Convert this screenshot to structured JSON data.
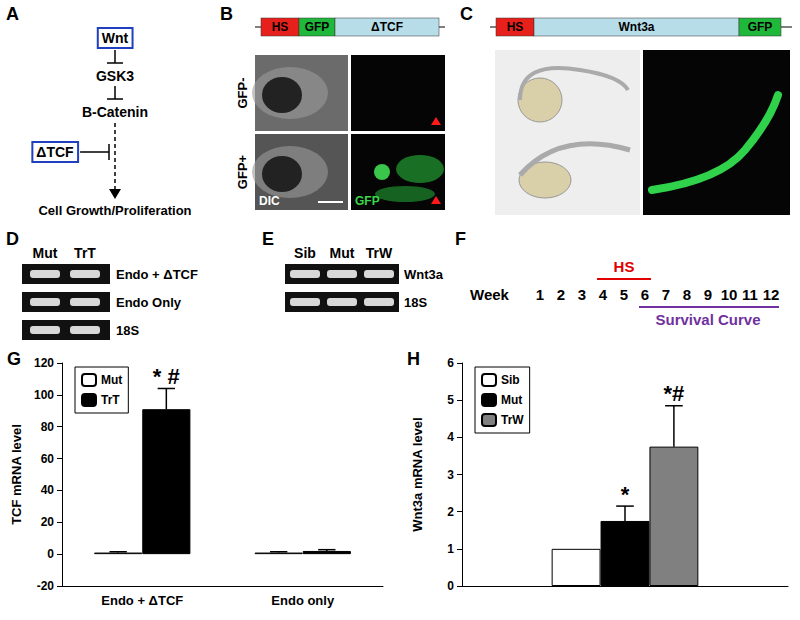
{
  "panels": {
    "A": {
      "label": "A",
      "nodes": [
        "Wnt",
        "GSK3",
        "B-Catenin",
        "ΔTCF",
        "Cell Growth/Proliferation"
      ]
    },
    "B": {
      "label": "B",
      "construct": [
        "HS",
        "GFP",
        "ΔTCF"
      ],
      "rows": [
        "GFP-",
        "GFP+"
      ],
      "columns": [
        "DIC",
        "GFP"
      ]
    },
    "C": {
      "label": "C",
      "construct": [
        "HS",
        "Wnt3a",
        "GFP"
      ]
    },
    "D": {
      "label": "D",
      "lanes": [
        "Mut",
        "TrT"
      ],
      "rows": [
        "Endo + ΔTCF",
        "Endo Only",
        "18S"
      ]
    },
    "E": {
      "label": "E",
      "lanes": [
        "Sib",
        "Mut",
        "TrW"
      ],
      "rows": [
        "Wnt3a",
        "18S"
      ]
    },
    "F": {
      "label": "F",
      "prefix": "Week",
      "weeks": [
        1,
        2,
        3,
        4,
        5,
        6,
        7,
        8,
        9,
        10,
        11,
        12
      ],
      "heat_shock": {
        "text": "HS",
        "from": 4,
        "to": 6
      },
      "survival": {
        "text": "Survival Curve",
        "from": 6,
        "to": 12
      }
    }
  },
  "chart_data": [
    {
      "type": "bar",
      "title": "G",
      "y_label": "TCF mRNA level",
      "categories": [
        "Endo + ΔTCF",
        "Endo only"
      ],
      "series": [
        {
          "name": "Mut",
          "color": "#ffffff",
          "values": [
            1,
            1
          ],
          "errors": [
            0.5,
            0.5
          ]
        },
        {
          "name": "TrT",
          "color": "#000000",
          "values": [
            91,
            2
          ],
          "errors": [
            13,
            0.8
          ]
        }
      ],
      "annotations": [
        {
          "series": "TrT",
          "index": 0,
          "text": "* #"
        }
      ],
      "ylim": [
        -20,
        120
      ],
      "yticks": [
        -20,
        0,
        20,
        40,
        60,
        80,
        100,
        120
      ],
      "grid": false,
      "legend": "top-left"
    },
    {
      "type": "bar",
      "title": "H",
      "y_label": "Wnt3a mRNA level",
      "categories": [
        null
      ],
      "series": [
        {
          "name": "Sib",
          "color": "#ffffff",
          "values": [
            1
          ],
          "errors": [
            null
          ]
        },
        {
          "name": "Mut",
          "color": "#000000",
          "values": [
            1.75
          ],
          "errors": [
            0.4
          ]
        },
        {
          "name": "TrW",
          "color": "#808080",
          "values": [
            3.75
          ],
          "errors": [
            1.1
          ]
        }
      ],
      "annotations": [
        {
          "series": "Mut",
          "index": 0,
          "text": "*"
        },
        {
          "series": "TrW",
          "index": 0,
          "text": "*#"
        }
      ],
      "ylim": [
        0,
        6
      ],
      "yticks": [
        0,
        1,
        2,
        3,
        4,
        5,
        6
      ],
      "grid": false,
      "legend": "top-left"
    }
  ]
}
